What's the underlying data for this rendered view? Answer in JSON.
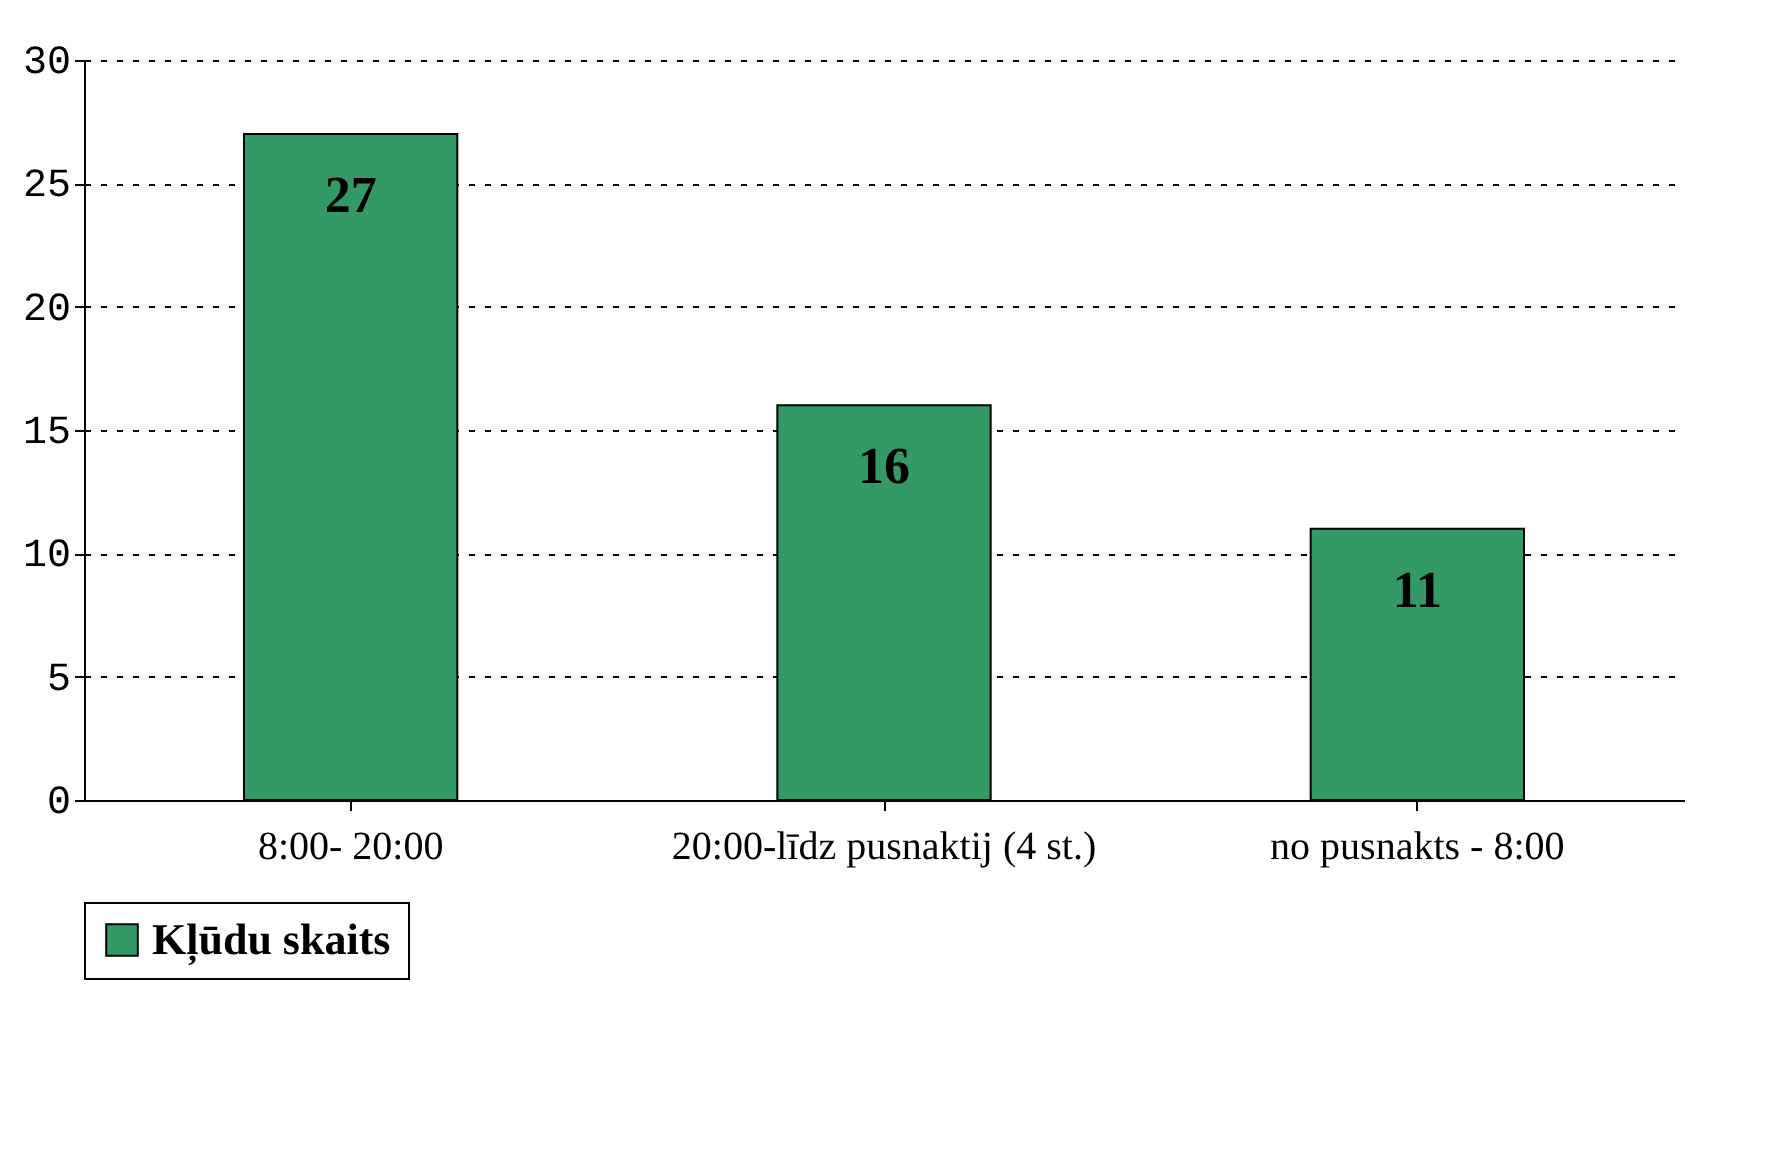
{
  "chart_data": {
    "type": "bar",
    "categories": [
      "8:00- 20:00",
      "20:00-līdz pusnaktij (4 st.)",
      "no pusnakts - 8:00"
    ],
    "series": [
      {
        "name": "Kļūdu skaits",
        "color": "#339966",
        "values": [
          27,
          16,
          11
        ]
      }
    ],
    "ylim": [
      0,
      30
    ],
    "yticks": [
      0,
      5,
      10,
      15,
      20,
      25,
      30
    ],
    "grid": "y",
    "legend": "bottom",
    "data_labels": true
  }
}
